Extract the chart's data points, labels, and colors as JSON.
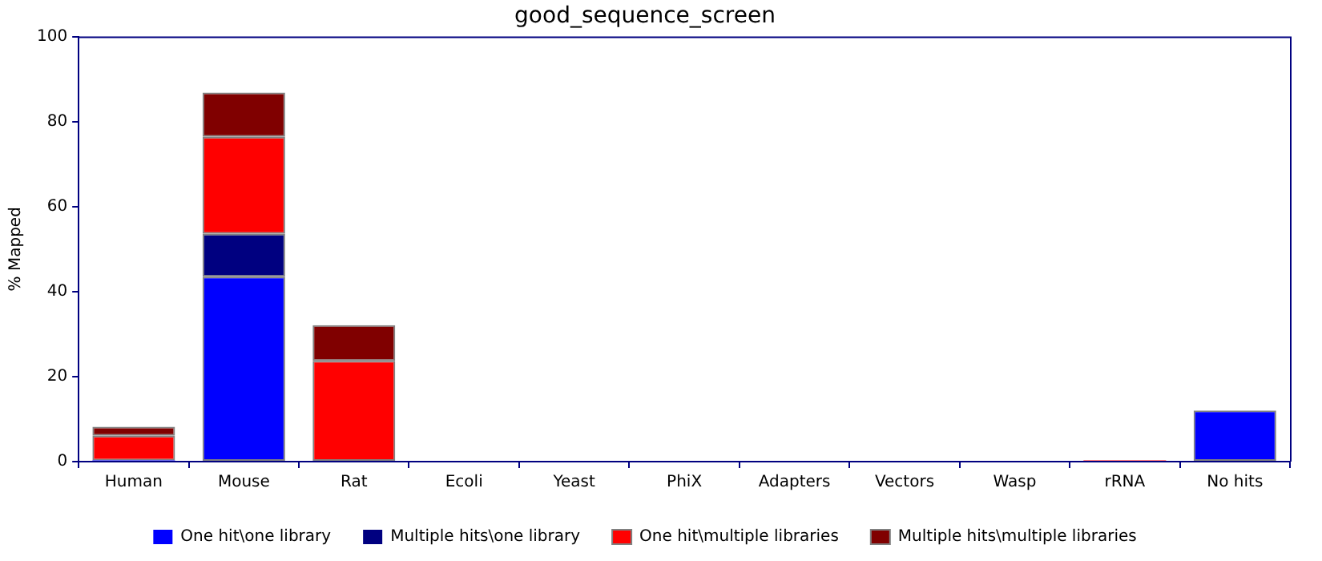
{
  "chart_data": {
    "type": "bar",
    "title": "good_sequence_screen",
    "ylabel": "% Mapped",
    "stacked": true,
    "categories": [
      "Human",
      "Mouse",
      "Rat",
      "Ecoli",
      "Yeast",
      "PhiX",
      "Adapters",
      "Vectors",
      "Wasp",
      "rRNA",
      "No hits"
    ],
    "series": [
      {
        "name": "One hit\\one library",
        "color": "#0000ff",
        "values": [
          0.3,
          43.5,
          0.2,
          0,
          0,
          0,
          0,
          0,
          0,
          0,
          12.0
        ]
      },
      {
        "name": "Multiple hits\\one library",
        "color": "#000080",
        "values": [
          0,
          10.1,
          0,
          0,
          0,
          0,
          0,
          0,
          0,
          0,
          0
        ]
      },
      {
        "name": "One hit\\multiple libraries",
        "color": "#ff0000",
        "values": [
          5.8,
          22.8,
          23.5,
          0,
          0,
          0,
          0,
          0,
          0,
          0.3,
          0
        ]
      },
      {
        "name": "Multiple hits\\multiple libraries",
        "color": "#800000",
        "values": [
          2.1,
          10.4,
          8.4,
          0,
          0,
          0,
          0,
          0,
          0,
          0,
          0
        ]
      }
    ],
    "ylim": [
      0,
      100
    ],
    "yticks": [
      0,
      20,
      40,
      60,
      80,
      100
    ],
    "grid": false,
    "legend": "bottom"
  }
}
